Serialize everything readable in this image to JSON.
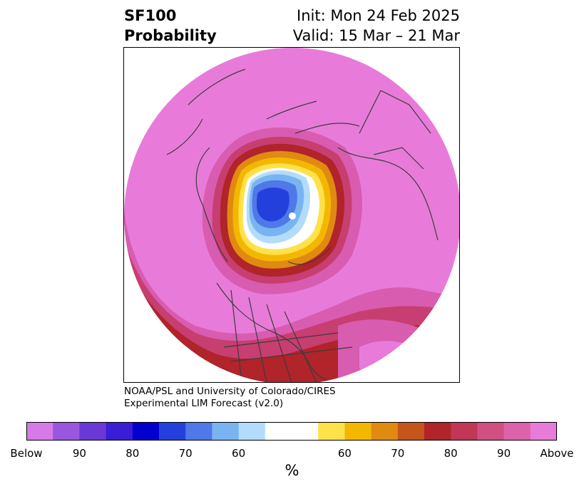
{
  "title": {
    "line1": "SF100",
    "line2": "Probability",
    "init": "Init: Mon 24 Feb 2025",
    "valid": "Valid: 15 Mar – 21 Mar"
  },
  "credit": {
    "line1": "NOAA/PSL and University of Colorado/CIRES",
    "line2": "Experimental LIM Forecast (v2.0)"
  },
  "colorbar": {
    "colors": [
      "#d67ae8",
      "#9b56e0",
      "#6b38d8",
      "#3a1ed6",
      "#0300cf",
      "#2440dc",
      "#4f78e8",
      "#78b4f2",
      "#b2dcfa",
      "#ffffff",
      "#ffffff",
      "#ffe14a",
      "#f4b700",
      "#e08a12",
      "#c55518",
      "#b0242a",
      "#c23755",
      "#d15082",
      "#dd62ac",
      "#e87bda"
    ],
    "ticks": [
      "Below",
      "90",
      "80",
      "70",
      "60",
      "60",
      "70",
      "80",
      "90",
      "Above"
    ],
    "unit": "%"
  },
  "map": {
    "background_category": "Above",
    "colors": {
      "above_90": "#e87bda",
      "above_80": "#d85cb0",
      "above_70": "#c73e70",
      "above_60": "#b0242a",
      "above_55": "#e08a12",
      "above_50": "#ffe14a",
      "neutral": "#ffffff",
      "below_60": "#b2dcfa",
      "below_70": "#78b4f2",
      "below_80": "#4f78e8",
      "below_90": "#2440dc",
      "coastline": "#3c3c3c"
    }
  }
}
